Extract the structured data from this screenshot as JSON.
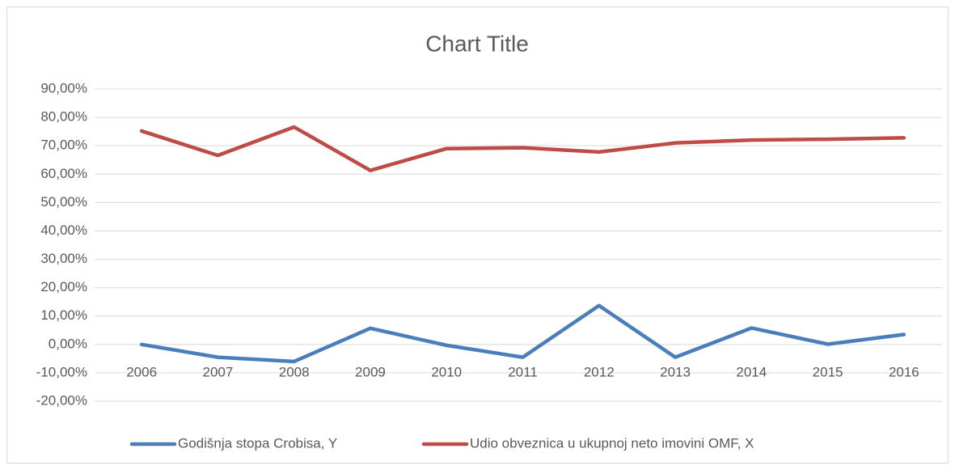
{
  "chart_data": {
    "type": "line",
    "title": "Chart Title",
    "categories": [
      "2006",
      "2007",
      "2008",
      "2009",
      "2010",
      "2011",
      "2012",
      "2013",
      "2014",
      "2015",
      "2016"
    ],
    "series": [
      {
        "name": "Godišnja stopa Crobisa, Y",
        "color": "#4a7ebb",
        "values": [
          0.0,
          -4.5,
          -6.0,
          5.7,
          -0.3,
          -4.5,
          13.7,
          -4.5,
          5.8,
          0.1,
          3.5
        ]
      },
      {
        "name": "Udio obveznica u ukupnoj neto imovini OMF, X",
        "color": "#be4b48",
        "values": [
          75.2,
          66.6,
          76.6,
          61.3,
          69.0,
          69.3,
          67.8,
          71.0,
          72.0,
          72.3,
          72.8
        ]
      }
    ],
    "ylim": [
      -20,
      90
    ],
    "yticks": [
      {
        "value": -20,
        "label": "-20,00%"
      },
      {
        "value": -10,
        "label": "-10,00%"
      },
      {
        "value": 0,
        "label": "0,00%"
      },
      {
        "value": 10,
        "label": "10,00%"
      },
      {
        "value": 20,
        "label": "20,00%"
      },
      {
        "value": 30,
        "label": "30,00%"
      },
      {
        "value": 40,
        "label": "40,00%"
      },
      {
        "value": 50,
        "label": "50,00%"
      },
      {
        "value": 60,
        "label": "60,00%"
      },
      {
        "value": 70,
        "label": "70,00%"
      },
      {
        "value": 80,
        "label": "80,00%"
      },
      {
        "value": 90,
        "label": "90,00%"
      }
    ],
    "grid": true,
    "legend": "bottom"
  }
}
